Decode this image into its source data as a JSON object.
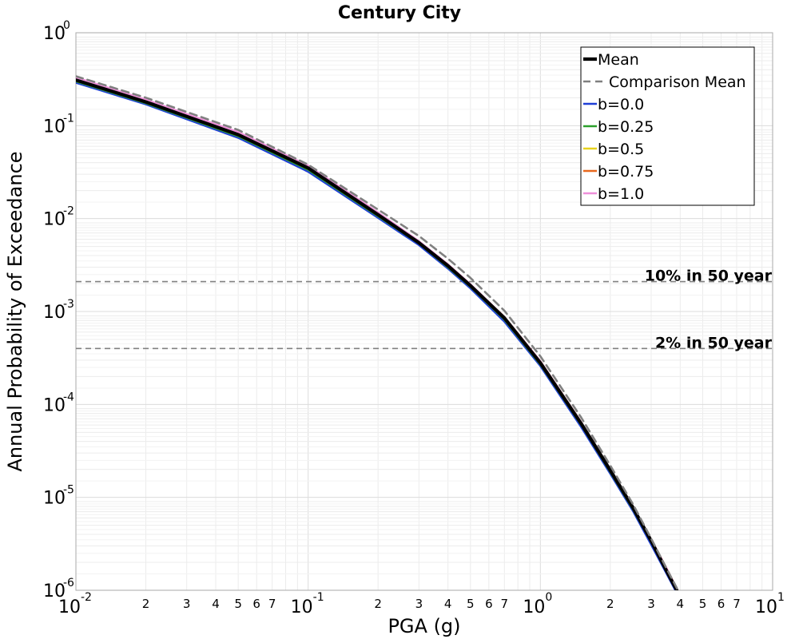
{
  "chart_data": {
    "type": "line",
    "title": "Century City",
    "xlabel": "PGA (g)",
    "ylabel": "Annual Probability of Exceedance",
    "xscale": "log",
    "yscale": "log",
    "xlim": [
      0.01,
      10
    ],
    "ylim": [
      1e-06,
      1
    ],
    "grid": true,
    "legend_position": "top-right",
    "x_major_ticks": [
      {
        "base": "10",
        "exp": "-2"
      },
      {
        "base": "10",
        "exp": "-1"
      },
      {
        "base": "10",
        "exp": "0"
      },
      {
        "base": "10",
        "exp": "1"
      }
    ],
    "y_major_ticks": [
      {
        "base": "10",
        "exp": "0"
      },
      {
        "base": "10",
        "exp": "-1"
      },
      {
        "base": "10",
        "exp": "-2"
      },
      {
        "base": "10",
        "exp": "-3"
      },
      {
        "base": "10",
        "exp": "-4"
      },
      {
        "base": "10",
        "exp": "-5"
      },
      {
        "base": "10",
        "exp": "-6"
      }
    ],
    "x_minor_labels": [
      "2",
      "3",
      "4",
      "5",
      "6",
      "7"
    ],
    "reference_lines": [
      {
        "label": "10% in 50 year",
        "y": 0.0021,
        "color": "#808080"
      },
      {
        "label": "2% in 50 year",
        "y": 0.0004,
        "color": "#808080"
      }
    ],
    "series": [
      {
        "name": "Mean",
        "color": "#000000",
        "style": "solid",
        "x": [
          0.01,
          0.02,
          0.05,
          0.1,
          0.2,
          0.3,
          0.4,
          0.5,
          0.7,
          1.0,
          1.5,
          2.0,
          2.5,
          3.0,
          3.5,
          4.0
        ],
        "y": [
          0.31,
          0.18,
          0.08,
          0.035,
          0.011,
          0.0055,
          0.0031,
          0.0019,
          0.00085,
          0.00028,
          6.2e-05,
          1.95e-05,
          7.8e-06,
          3.4e-06,
          1.6e-06,
          8.5e-07
        ]
      },
      {
        "name": "Comparison Mean",
        "color": "#808080",
        "style": "dashed",
        "x": [
          0.01,
          0.02,
          0.05,
          0.1,
          0.2,
          0.3,
          0.4,
          0.5,
          0.7,
          1.0,
          1.5,
          2.0,
          2.5,
          3.0,
          3.5,
          4.0
        ],
        "y": [
          0.34,
          0.2,
          0.09,
          0.038,
          0.0125,
          0.0065,
          0.0037,
          0.0023,
          0.00102,
          0.00033,
          7.2e-05,
          2.2e-05,
          8.5e-06,
          3.6e-06,
          1.7e-06,
          9e-07
        ]
      },
      {
        "name": "b=0.0",
        "color": "#1f3fd6",
        "style": "solid",
        "x": [
          0.01,
          0.02,
          0.05,
          0.1,
          0.2,
          0.3,
          0.4,
          0.5,
          0.7,
          1.0,
          1.5,
          2.0,
          2.5,
          3.0,
          3.5,
          4.0
        ],
        "y": [
          0.29,
          0.17,
          0.074,
          0.032,
          0.0102,
          0.0052,
          0.0029,
          0.00178,
          0.00078,
          0.00026,
          5.7e-05,
          1.8e-05,
          7.2e-06,
          3.1e-06,
          1.5e-06,
          8e-07
        ]
      },
      {
        "name": "b=0.25",
        "color": "#2ca02c",
        "style": "solid",
        "x": [
          0.01,
          0.02,
          0.05,
          0.1,
          0.2,
          0.3,
          0.4,
          0.5,
          0.7,
          1.0,
          1.5,
          2.0,
          2.5,
          3.0,
          3.5,
          4.0
        ],
        "y": [
          0.3,
          0.175,
          0.077,
          0.0335,
          0.0106,
          0.0054,
          0.003,
          0.00185,
          0.00082,
          0.00027,
          6e-05,
          1.88e-05,
          7.5e-06,
          3.3e-06,
          1.6e-06,
          8.3e-07
        ]
      },
      {
        "name": "b=0.5",
        "color": "#e8d21d",
        "style": "solid",
        "x": [
          0.01,
          0.02,
          0.05,
          0.1,
          0.2,
          0.3,
          0.4,
          0.5,
          0.7,
          1.0,
          1.5,
          2.0,
          2.5,
          3.0,
          3.5,
          4.0
        ],
        "y": [
          0.31,
          0.18,
          0.08,
          0.035,
          0.011,
          0.0055,
          0.0031,
          0.0019,
          0.00085,
          0.00028,
          6.2e-05,
          1.95e-05,
          7.8e-06,
          3.4e-06,
          1.6e-06,
          8.5e-07
        ]
      },
      {
        "name": "b=0.75",
        "color": "#e8681d",
        "style": "solid",
        "x": [
          0.01,
          0.02,
          0.05,
          0.1,
          0.2,
          0.3,
          0.4,
          0.5,
          0.7,
          1.0,
          1.5,
          2.0,
          2.5,
          3.0,
          3.5,
          4.0
        ],
        "y": [
          0.32,
          0.185,
          0.082,
          0.036,
          0.0113,
          0.0056,
          0.0032,
          0.00195,
          0.00087,
          0.00029,
          6.4e-05,
          2e-05,
          8e-06,
          3.5e-06,
          1.7e-06,
          8.7e-07
        ]
      },
      {
        "name": "b=1.0",
        "color": "#ee8fd9",
        "style": "solid",
        "x": [
          0.01,
          0.02,
          0.05,
          0.1,
          0.2,
          0.3,
          0.4,
          0.5,
          0.7,
          1.0,
          1.5,
          2.0,
          2.5,
          3.0,
          3.5,
          4.0
        ],
        "y": [
          0.33,
          0.19,
          0.085,
          0.037,
          0.0116,
          0.0057,
          0.0032,
          0.00196,
          0.00087,
          0.00029,
          6.4e-05,
          2e-05,
          8e-06,
          3.5e-06,
          1.7e-06,
          8.7e-07
        ]
      }
    ]
  }
}
